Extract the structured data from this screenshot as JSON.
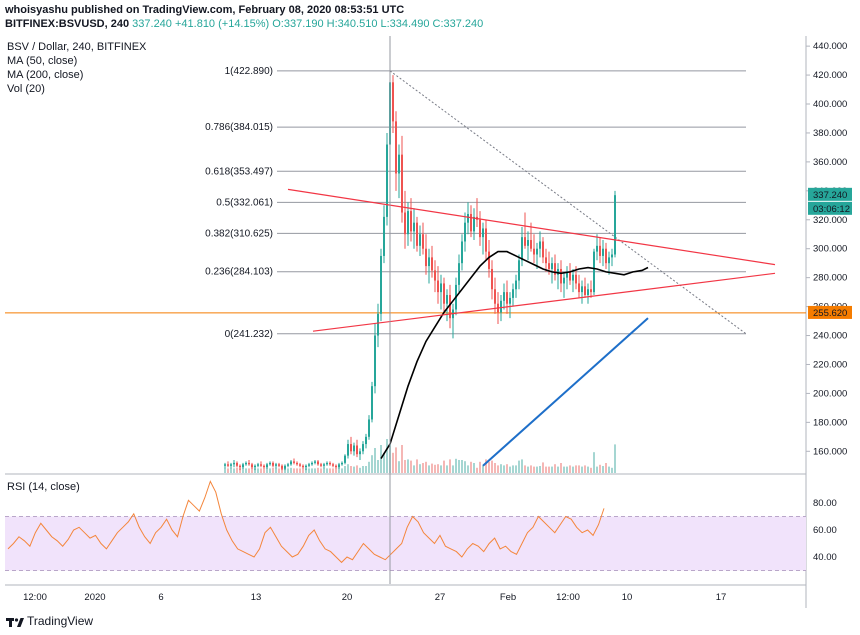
{
  "header": {
    "publisher_line": "whoisyashu published on TradingView.com, February 08, 2020 08:53:51 UTC",
    "symbol": "BITFINEX:BSVUSD, 240",
    "last": "337.240",
    "change": "+41.810 (+14.15%)",
    "open": "O:337.190",
    "high": "H:340.510",
    "low": "L:334.490",
    "close": "C:337.240"
  },
  "legend": {
    "title": "BSV / Dollar, 240, BITFINEX",
    "ma50": "MA (50, close)",
    "ma200": "MA (200, close)",
    "vol": "Vol (20)",
    "rsi": "RSI (14, close)"
  },
  "footer": {
    "brand": "TradingView"
  },
  "price_tags": {
    "last_price": "337.240",
    "countdown": "03:06:12",
    "horizontal_level": "255.620"
  },
  "colors": {
    "up": "#26a69a",
    "down": "#ef5350",
    "ma50": "#000000",
    "ma200": "#1e6fc9",
    "trendline": "#f23645",
    "level": "#f57c00",
    "rsi": "#f4863c",
    "rsi_band": "#f1e3fb"
  },
  "chart_data": [
    {
      "type": "candlestick",
      "title": "BSV / Dollar, 240, BITFINEX",
      "y_axis": {
        "ticks": [
          "160.000",
          "180.000",
          "200.000",
          "220.000",
          "240.000",
          "260.000",
          "280.000",
          "300.000",
          "320.000",
          "340.000",
          "360.000",
          "380.000",
          "400.000",
          "420.000",
          "440.000"
        ],
        "ylim": [
          145,
          447
        ]
      },
      "x_axis": {
        "ticks": [
          "12:00",
          "2020",
          "6",
          "13",
          "20",
          "27",
          "Feb",
          "12:00",
          "10",
          "17"
        ]
      },
      "fibonacci": [
        {
          "label": "1(422.890)",
          "value": 422.89
        },
        {
          "label": "0.786(384.015)",
          "value": 384.015
        },
        {
          "label": "0.618(353.497)",
          "value": 353.497
        },
        {
          "label": "0.5(332.061)",
          "value": 332.061
        },
        {
          "label": "0.382(310.625)",
          "value": 310.625
        },
        {
          "label": "0.236(284.103)",
          "value": 284.103
        },
        {
          "label": "0(241.232)",
          "value": 241.232
        }
      ],
      "horizontal_level": 255.62,
      "last_price": 337.24,
      "series_candles": [
        [
          150,
          152,
          148,
          151
        ],
        [
          151,
          153,
          149,
          150
        ],
        [
          150,
          152,
          148,
          151
        ],
        [
          151,
          154,
          149,
          152
        ],
        [
          152,
          153,
          149,
          150
        ],
        [
          150,
          151,
          147,
          149
        ],
        [
          149,
          152,
          148,
          151
        ],
        [
          151,
          153,
          150,
          152
        ],
        [
          152,
          154,
          150,
          151
        ],
        [
          151,
          152,
          148,
          149
        ],
        [
          149,
          151,
          147,
          150
        ],
        [
          150,
          152,
          149,
          151
        ],
        [
          151,
          153,
          149,
          150
        ],
        [
          150,
          151,
          148,
          149
        ],
        [
          149,
          152,
          148,
          151
        ],
        [
          151,
          153,
          150,
          152
        ],
        [
          152,
          153,
          149,
          150
        ],
        [
          150,
          152,
          148,
          151
        ],
        [
          151,
          152,
          149,
          150
        ],
        [
          150,
          151,
          147,
          148
        ],
        [
          148,
          151,
          147,
          150
        ],
        [
          150,
          152,
          149,
          151
        ],
        [
          151,
          154,
          150,
          153
        ],
        [
          153,
          155,
          151,
          152
        ],
        [
          152,
          153,
          150,
          151
        ],
        [
          151,
          152,
          149,
          150
        ],
        [
          150,
          151,
          148,
          149
        ],
        [
          149,
          151,
          147,
          150
        ],
        [
          150,
          152,
          149,
          151
        ],
        [
          151,
          153,
          150,
          152
        ],
        [
          152,
          154,
          151,
          153
        ],
        [
          153,
          154,
          150,
          151
        ],
        [
          151,
          152,
          149,
          150
        ],
        [
          150,
          152,
          148,
          151
        ],
        [
          151,
          153,
          150,
          152
        ],
        [
          152,
          153,
          150,
          151
        ],
        [
          151,
          152,
          149,
          150
        ],
        [
          150,
          151,
          148,
          149
        ],
        [
          149,
          152,
          148,
          151
        ],
        [
          151,
          153,
          150,
          152
        ],
        [
          152,
          158,
          151,
          157
        ],
        [
          157,
          168,
          155,
          165
        ],
        [
          165,
          170,
          158,
          160
        ],
        [
          160,
          166,
          157,
          164
        ],
        [
          164,
          168,
          156,
          158
        ],
        [
          158,
          162,
          154,
          160
        ],
        [
          160,
          167,
          158,
          165
        ],
        [
          165,
          172,
          162,
          170
        ],
        [
          170,
          185,
          168,
          182
        ],
        [
          182,
          208,
          180,
          205
        ],
        [
          205,
          248,
          200,
          240
        ],
        [
          240,
          262,
          232,
          255
        ],
        [
          255,
          300,
          250,
          295
        ],
        [
          295,
          330,
          290,
          322
        ],
        [
          322,
          380,
          316,
          372
        ],
        [
          372,
          425,
          360,
          415
        ],
        [
          415,
          420,
          380,
          388
        ],
        [
          388,
          395,
          340,
          352
        ],
        [
          352,
          372,
          335,
          365
        ],
        [
          365,
          378,
          318,
          325
        ],
        [
          325,
          340,
          300,
          310
        ],
        [
          310,
          332,
          302,
          326
        ],
        [
          326,
          335,
          305,
          312
        ],
        [
          312,
          328,
          300,
          318
        ],
        [
          318,
          322,
          298,
          302
        ],
        [
          302,
          316,
          295,
          310
        ],
        [
          310,
          318,
          296,
          300
        ],
        [
          300,
          310,
          282,
          288
        ],
        [
          288,
          300,
          276,
          294
        ],
        [
          294,
          302,
          280,
          285
        ],
        [
          285,
          292,
          270,
          278
        ],
        [
          278,
          288,
          262,
          270
        ],
        [
          270,
          282,
          258,
          276
        ],
        [
          276,
          280,
          255,
          262
        ],
        [
          262,
          272,
          250,
          268
        ],
        [
          268,
          275,
          245,
          252
        ],
        [
          252,
          262,
          238,
          258
        ],
        [
          258,
          280,
          254,
          275
        ],
        [
          275,
          296,
          270,
          290
        ],
        [
          290,
          310,
          285,
          305
        ],
        [
          305,
          325,
          298,
          318
        ],
        [
          318,
          332,
          310,
          324
        ],
        [
          324,
          330,
          308,
          312
        ],
        [
          312,
          328,
          306,
          322
        ],
        [
          322,
          335,
          315,
          320
        ],
        [
          320,
          326,
          302,
          308
        ],
        [
          308,
          318,
          296,
          314
        ],
        [
          314,
          320,
          292,
          298
        ],
        [
          298,
          306,
          280,
          286
        ],
        [
          286,
          292,
          265,
          272
        ],
        [
          272,
          280,
          255,
          262
        ],
        [
          262,
          270,
          248,
          256
        ],
        [
          256,
          268,
          250,
          264
        ],
        [
          264,
          276,
          258,
          270
        ],
        [
          270,
          278,
          255,
          262
        ],
        [
          262,
          270,
          252,
          266
        ],
        [
          266,
          276,
          260,
          272
        ],
        [
          272,
          282,
          266,
          278
        ],
        [
          278,
          296,
          272,
          292
        ],
        [
          292,
          315,
          288,
          308
        ],
        [
          308,
          325,
          300,
          302
        ],
        [
          302,
          312,
          292,
          306
        ],
        [
          306,
          318,
          298,
          300
        ],
        [
          300,
          310,
          290,
          296
        ],
        [
          296,
          304,
          286,
          300
        ],
        [
          300,
          312,
          294,
          305
        ],
        [
          305,
          308,
          290,
          294
        ],
        [
          294,
          300,
          284,
          290
        ],
        [
          290,
          298,
          282,
          286
        ],
        [
          286,
          294,
          276,
          290
        ],
        [
          290,
          296,
          278,
          282
        ],
        [
          282,
          290,
          272,
          286
        ],
        [
          286,
          292,
          270,
          276
        ],
        [
          276,
          284,
          266,
          280
        ],
        [
          280,
          288,
          272,
          284
        ],
        [
          284,
          290,
          275,
          278
        ],
        [
          278,
          286,
          270,
          282
        ],
        [
          282,
          288,
          272,
          276
        ],
        [
          276,
          282,
          266,
          270
        ],
        [
          270,
          278,
          262,
          274
        ],
        [
          274,
          280,
          266,
          268
        ],
        [
          268,
          276,
          262,
          272
        ],
        [
          272,
          278,
          266,
          270
        ],
        [
          270,
          300,
          268,
          298
        ],
        [
          298,
          310,
          292,
          302
        ],
        [
          302,
          308,
          290,
          295
        ],
        [
          295,
          306,
          288,
          300
        ],
        [
          300,
          304,
          286,
          290
        ],
        [
          290,
          298,
          282,
          294
        ],
        [
          294,
          300,
          288,
          296
        ],
        [
          296,
          340,
          294,
          337
        ]
      ],
      "series_ma50": [
        [
          52,
          155
        ],
        [
          55,
          165
        ],
        [
          58,
          185
        ],
        [
          61,
          205
        ],
        [
          64,
          222
        ],
        [
          67,
          236
        ],
        [
          70,
          246
        ],
        [
          73,
          256
        ],
        [
          76,
          264
        ],
        [
          79,
          272
        ],
        [
          82,
          280
        ],
        [
          85,
          288
        ],
        [
          88,
          294
        ],
        [
          91,
          298
        ],
        [
          94,
          298
        ],
        [
          97,
          295
        ],
        [
          100,
          292
        ],
        [
          103,
          289
        ],
        [
          106,
          286
        ],
        [
          109,
          284
        ],
        [
          112,
          283
        ],
        [
          115,
          284
        ],
        [
          118,
          286
        ],
        [
          121,
          287
        ],
        [
          124,
          286
        ],
        [
          127,
          284
        ],
        [
          130,
          283
        ],
        [
          133,
          282
        ],
        [
          136,
          284
        ],
        [
          139,
          285
        ],
        [
          141,
          287
        ]
      ],
      "series_ma200": [
        [
          86,
          150
        ],
        [
          141,
          252
        ]
      ],
      "series_rsi": [
        46,
        50,
        55,
        52,
        48,
        58,
        65,
        60,
        55,
        52,
        48,
        53,
        60,
        62,
        58,
        54,
        56,
        50,
        46,
        52,
        58,
        62,
        66,
        72,
        62,
        55,
        50,
        58,
        62,
        68,
        60,
        55,
        70,
        82,
        78,
        74,
        84,
        96,
        88,
        72,
        60,
        52,
        46,
        44,
        42,
        40,
        46,
        58,
        62,
        55,
        48,
        44,
        40,
        42,
        48,
        56,
        60,
        52,
        46,
        44,
        40,
        36,
        40,
        38,
        44,
        50,
        46,
        42,
        40,
        38,
        42,
        46,
        50,
        62,
        70,
        66,
        58,
        54,
        50,
        56,
        48,
        46,
        44,
        40,
        46,
        50,
        48,
        44,
        50,
        54,
        46,
        48,
        44,
        42,
        50,
        58,
        62,
        70,
        66,
        62,
        58,
        64,
        70,
        68,
        62,
        58,
        60,
        56,
        64,
        76
      ],
      "rsi_axis": {
        "ticks": [
          "40.00",
          "60.00",
          "80.00"
        ],
        "band": [
          30,
          70
        ]
      }
    }
  ]
}
